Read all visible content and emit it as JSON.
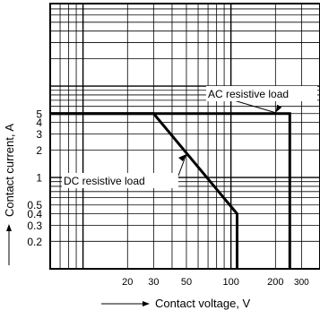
{
  "chart_data": {
    "type": "line",
    "xlabel": "Contact voltage, V",
    "ylabel": "Contact current, A",
    "x_scale": "log",
    "y_scale": "log",
    "xlim": [
      6,
      400
    ],
    "ylim": [
      0.1,
      80
    ],
    "grid": true,
    "x_ticks": [
      {
        "value": 20,
        "label": "20"
      },
      {
        "value": 30,
        "label": "30"
      },
      {
        "value": 50,
        "label": "50"
      },
      {
        "value": 100,
        "label": "100"
      },
      {
        "value": 200,
        "label": "200"
      },
      {
        "value": 300,
        "label": "300"
      }
    ],
    "y_ticks": [
      {
        "value": 5,
        "label": "5"
      },
      {
        "value": 4,
        "label": "4"
      },
      {
        "value": 3,
        "label": "3"
      },
      {
        "value": 2,
        "label": "2"
      },
      {
        "value": 1,
        "label": "1"
      },
      {
        "value": 0.5,
        "label": "0.5"
      },
      {
        "value": 0.4,
        "label": "0.4"
      },
      {
        "value": 0.3,
        "label": "0.3"
      },
      {
        "value": 0.2,
        "label": "0.2"
      }
    ],
    "series": [
      {
        "name": "AC resistive load",
        "points": [
          {
            "x": 6,
            "y": 5
          },
          {
            "x": 250,
            "y": 5
          },
          {
            "x": 250,
            "y": 0.1
          }
        ]
      },
      {
        "name": "DC resistive load",
        "points": [
          {
            "x": 6,
            "y": 5
          },
          {
            "x": 30,
            "y": 5
          },
          {
            "x": 110,
            "y": 0.4
          },
          {
            "x": 110,
            "y": 0.1
          }
        ]
      }
    ],
    "annotations": [
      {
        "text": "AC resistive load",
        "x": 200,
        "y": 5
      },
      {
        "text": "DC resistive load",
        "x": 50,
        "y": 1.8
      }
    ]
  }
}
